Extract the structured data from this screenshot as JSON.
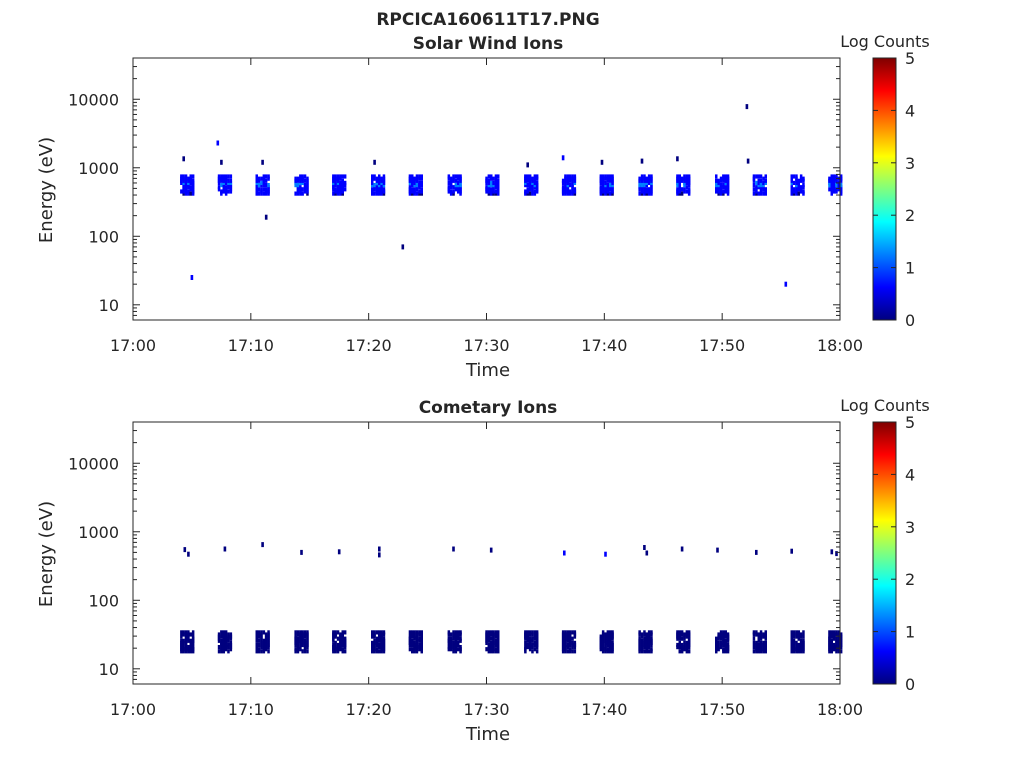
{
  "figure_title": "RPCICA160611T17.PNG",
  "colormap": [
    "#00007f",
    "#0000ff",
    "#007fff",
    "#00ffff",
    "#7fff7f",
    "#ffff00",
    "#ff7f00",
    "#ff0000",
    "#7f0000"
  ],
  "chart_data": [
    {
      "type": "heatmap",
      "title": "Solar Wind Ions",
      "xlabel": "Time",
      "ylabel": "Energy (eV)",
      "xlim": [
        "17:00",
        "18:00"
      ],
      "xticks": [
        "17:00",
        "17:10",
        "17:20",
        "17:30",
        "17:40",
        "17:50",
        "18:00"
      ],
      "ylim": [
        6,
        40000
      ],
      "yscale": "log",
      "yticks": [
        "10",
        "100",
        "1000",
        "10000"
      ],
      "colorbar_label": "Log Counts",
      "colorbar_ticks": [
        "0",
        "1",
        "2",
        "3",
        "4",
        "5"
      ],
      "clim": [
        0,
        5
      ],
      "scan_minutes": [
        4.6,
        7.8,
        11.0,
        14.3,
        17.5,
        20.8,
        24.0,
        27.3,
        30.5,
        33.8,
        37.0,
        40.2,
        43.5,
        46.7,
        50.0,
        53.2,
        56.4,
        59.6
      ],
      "scan_band": {
        "low_eV": 420,
        "high_eV": 800,
        "peak_log_counts": 1.2
      },
      "sparse_points": [
        {
          "t": 4.3,
          "e": 1350,
          "v": 0.3
        },
        {
          "t": 5.0,
          "e": 25,
          "v": 0.5
        },
        {
          "t": 7.2,
          "e": 2300,
          "v": 0.4
        },
        {
          "t": 7.5,
          "e": 1200,
          "v": 0.3
        },
        {
          "t": 11.0,
          "e": 1200,
          "v": 0.3
        },
        {
          "t": 11.3,
          "e": 190,
          "v": 0.3
        },
        {
          "t": 20.5,
          "e": 1200,
          "v": 0.3
        },
        {
          "t": 22.9,
          "e": 70,
          "v": 0.2
        },
        {
          "t": 33.5,
          "e": 1100,
          "v": 0.3
        },
        {
          "t": 36.5,
          "e": 1400,
          "v": 0.5
        },
        {
          "t": 39.8,
          "e": 1200,
          "v": 0.3
        },
        {
          "t": 43.2,
          "e": 1250,
          "v": 0.3
        },
        {
          "t": 46.2,
          "e": 1350,
          "v": 0.3
        },
        {
          "t": 52.1,
          "e": 7800,
          "v": 0.3
        },
        {
          "t": 52.2,
          "e": 1250,
          "v": 0.3
        },
        {
          "t": 55.4,
          "e": 20,
          "v": 0.6
        }
      ]
    },
    {
      "type": "heatmap",
      "title": "Cometary Ions",
      "xlabel": "Time",
      "ylabel": "Energy (eV)",
      "xlim": [
        "17:00",
        "18:00"
      ],
      "xticks": [
        "17:00",
        "17:10",
        "17:20",
        "17:30",
        "17:40",
        "17:50",
        "18:00"
      ],
      "ylim": [
        6,
        40000
      ],
      "yscale": "log",
      "yticks": [
        "10",
        "100",
        "1000",
        "10000"
      ],
      "colorbar_label": "Log Counts",
      "colorbar_ticks": [
        "0",
        "1",
        "2",
        "3",
        "4",
        "5"
      ],
      "clim": [
        0,
        5
      ],
      "scan_minutes": [
        4.6,
        7.8,
        11.0,
        14.3,
        17.5,
        20.8,
        24.0,
        27.3,
        30.5,
        33.8,
        37.0,
        40.2,
        43.5,
        46.7,
        50.0,
        53.2,
        56.4,
        59.6
      ],
      "low_band": {
        "low_eV": 18,
        "high_eV": 34,
        "peak_log_counts": 0.3
      },
      "sparse_points": [
        {
          "t": 4.4,
          "e": 550,
          "v": 0.2
        },
        {
          "t": 4.7,
          "e": 470,
          "v": 0.2
        },
        {
          "t": 7.8,
          "e": 560,
          "v": 0.2
        },
        {
          "t": 11.0,
          "e": 650,
          "v": 0.2
        },
        {
          "t": 14.3,
          "e": 500,
          "v": 0.2
        },
        {
          "t": 17.5,
          "e": 510,
          "v": 0.2
        },
        {
          "t": 20.9,
          "e": 560,
          "v": 0.2
        },
        {
          "t": 20.9,
          "e": 460,
          "v": 0.2
        },
        {
          "t": 27.2,
          "e": 560,
          "v": 0.2
        },
        {
          "t": 30.4,
          "e": 540,
          "v": 0.2
        },
        {
          "t": 36.6,
          "e": 490,
          "v": 0.4
        },
        {
          "t": 40.1,
          "e": 470,
          "v": 0.4
        },
        {
          "t": 43.4,
          "e": 590,
          "v": 0.2
        },
        {
          "t": 43.6,
          "e": 490,
          "v": 0.2
        },
        {
          "t": 46.6,
          "e": 560,
          "v": 0.2
        },
        {
          "t": 49.6,
          "e": 540,
          "v": 0.2
        },
        {
          "t": 52.9,
          "e": 500,
          "v": 0.2
        },
        {
          "t": 55.9,
          "e": 520,
          "v": 0.2
        },
        {
          "t": 59.3,
          "e": 510,
          "v": 0.2
        },
        {
          "t": 59.7,
          "e": 480,
          "v": 0.2
        }
      ]
    }
  ]
}
